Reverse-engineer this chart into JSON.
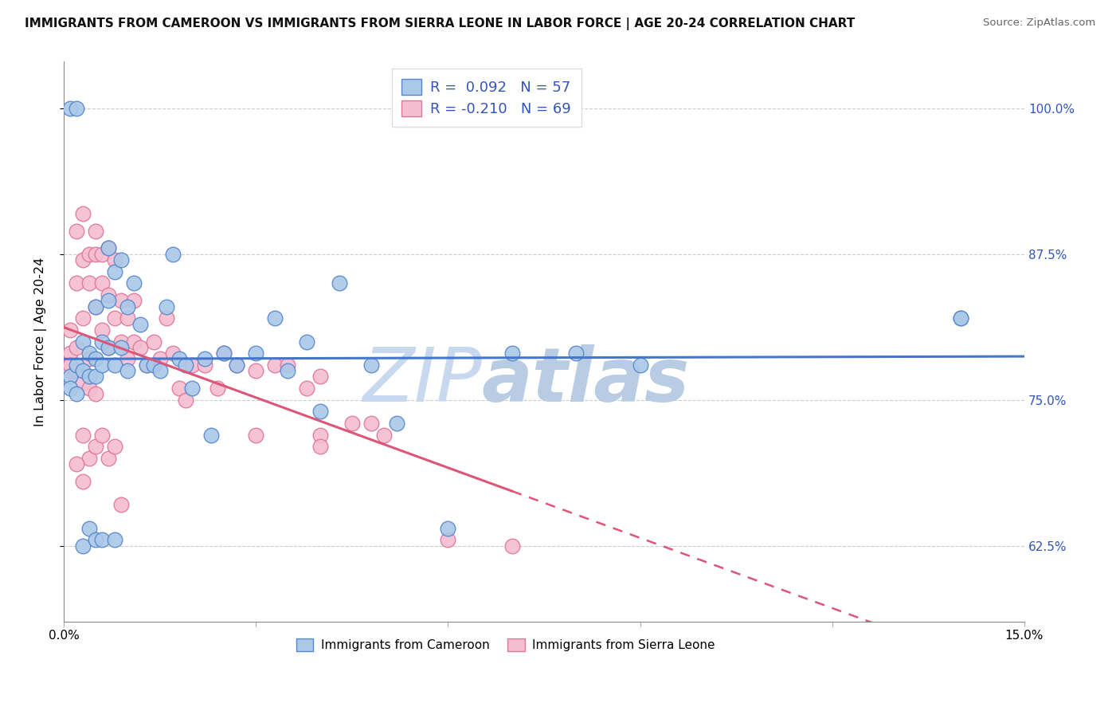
{
  "title": "IMMIGRANTS FROM CAMEROON VS IMMIGRANTS FROM SIERRA LEONE IN LABOR FORCE | AGE 20-24 CORRELATION CHART",
  "source": "Source: ZipAtlas.com",
  "ylabel": "In Labor Force | Age 20-24",
  "xlim": [
    0.0,
    0.15
  ],
  "ylim": [
    0.56,
    1.04
  ],
  "x_ticks": [
    0.0,
    0.03,
    0.06,
    0.09,
    0.12,
    0.15
  ],
  "x_tick_labels": [
    "0.0%",
    "",
    "",
    "",
    "",
    "15.0%"
  ],
  "y_ticks": [
    0.625,
    0.75,
    0.875,
    1.0
  ],
  "y_tick_labels": [
    "62.5%",
    "75.0%",
    "87.5%",
    "100.0%"
  ],
  "r_cameroon": 0.092,
  "n_cameroon": 57,
  "r_sierra": -0.21,
  "n_sierra": 69,
  "color_cameroon": "#aac8e8",
  "color_sierra": "#f5bdd0",
  "edge_cameroon": "#5588cc",
  "edge_sierra": "#dd7799",
  "line_color_cameroon": "#4477cc",
  "line_color_sierra": "#dd5577",
  "legend_text_color": "#3355bb",
  "watermark_color": "#c8d8ee",
  "legend_label_cameroon": "Immigrants from Cameroon",
  "legend_label_sierra": "Immigrants from Sierra Leone",
  "cam_x": [
    0.001,
    0.001,
    0.002,
    0.002,
    0.003,
    0.003,
    0.004,
    0.004,
    0.005,
    0.005,
    0.005,
    0.006,
    0.006,
    0.007,
    0.007,
    0.007,
    0.008,
    0.008,
    0.009,
    0.009,
    0.01,
    0.01,
    0.011,
    0.012,
    0.013,
    0.014,
    0.015,
    0.016,
    0.017,
    0.018,
    0.019,
    0.02,
    0.022,
    0.023,
    0.025,
    0.027,
    0.03,
    0.033,
    0.035,
    0.038,
    0.04,
    0.043,
    0.048,
    0.052,
    0.06,
    0.07,
    0.08,
    0.09,
    0.001,
    0.002,
    0.003,
    0.004,
    0.005,
    0.006,
    0.008,
    0.14,
    0.14
  ],
  "cam_y": [
    0.77,
    0.76,
    0.78,
    0.755,
    0.8,
    0.775,
    0.79,
    0.77,
    0.83,
    0.785,
    0.77,
    0.8,
    0.78,
    0.88,
    0.835,
    0.795,
    0.86,
    0.78,
    0.87,
    0.795,
    0.775,
    0.83,
    0.85,
    0.815,
    0.78,
    0.78,
    0.775,
    0.83,
    0.875,
    0.785,
    0.78,
    0.76,
    0.785,
    0.72,
    0.79,
    0.78,
    0.79,
    0.82,
    0.775,
    0.8,
    0.74,
    0.85,
    0.78,
    0.73,
    0.64,
    0.79,
    0.79,
    0.78,
    1.0,
    1.0,
    0.625,
    0.64,
    0.63,
    0.63,
    0.63,
    0.82,
    0.82
  ],
  "sie_x": [
    0.001,
    0.001,
    0.001,
    0.002,
    0.002,
    0.002,
    0.003,
    0.003,
    0.003,
    0.004,
    0.004,
    0.004,
    0.005,
    0.005,
    0.005,
    0.006,
    0.006,
    0.006,
    0.007,
    0.007,
    0.007,
    0.008,
    0.008,
    0.009,
    0.009,
    0.01,
    0.01,
    0.011,
    0.011,
    0.012,
    0.013,
    0.014,
    0.015,
    0.016,
    0.017,
    0.018,
    0.019,
    0.02,
    0.022,
    0.024,
    0.025,
    0.027,
    0.03,
    0.033,
    0.035,
    0.038,
    0.04,
    0.045,
    0.048,
    0.001,
    0.002,
    0.003,
    0.004,
    0.005,
    0.05,
    0.04,
    0.04,
    0.03,
    0.06,
    0.07,
    0.003,
    0.004,
    0.005,
    0.003,
    0.002,
    0.006,
    0.007,
    0.008,
    0.009
  ],
  "sie_y": [
    0.775,
    0.79,
    0.81,
    0.895,
    0.85,
    0.795,
    0.91,
    0.87,
    0.82,
    0.875,
    0.85,
    0.785,
    0.895,
    0.875,
    0.83,
    0.875,
    0.85,
    0.81,
    0.88,
    0.84,
    0.795,
    0.87,
    0.82,
    0.835,
    0.8,
    0.82,
    0.785,
    0.835,
    0.8,
    0.795,
    0.78,
    0.8,
    0.785,
    0.82,
    0.79,
    0.76,
    0.75,
    0.78,
    0.78,
    0.76,
    0.79,
    0.78,
    0.775,
    0.78,
    0.78,
    0.76,
    0.77,
    0.73,
    0.73,
    0.78,
    0.775,
    0.765,
    0.76,
    0.755,
    0.72,
    0.72,
    0.71,
    0.72,
    0.63,
    0.625,
    0.72,
    0.7,
    0.71,
    0.68,
    0.695,
    0.72,
    0.7,
    0.71,
    0.66
  ]
}
